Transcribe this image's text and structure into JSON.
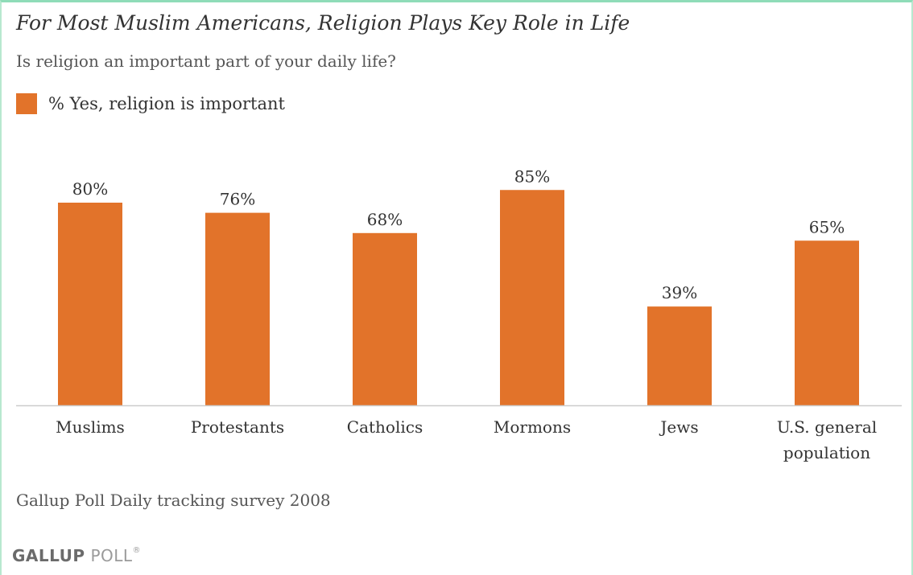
{
  "chart_data": {
    "type": "bar",
    "title": "For Most Muslim Americans, Religion Plays Key Role in Life",
    "subtitle": "Is religion an important part of your daily life?",
    "categories": [
      "Muslims",
      "Protestants",
      "Catholics",
      "Mormons",
      "Jews",
      "U.S. general population"
    ],
    "series": [
      {
        "name": "% Yes, religion is important",
        "values": [
          80,
          76,
          68,
          85,
          39,
          65
        ]
      }
    ],
    "value_labels": [
      "80%",
      "76%",
      "68%",
      "85%",
      "39%",
      "65%"
    ],
    "ylim": [
      0,
      100
    ],
    "grid": false,
    "legend_position": "top-left",
    "bar_color": "#e2732a"
  },
  "source": "Gallup Poll Daily tracking survey 2008",
  "logo": {
    "main": "GALLUP",
    "secondary": "POLL",
    "mark": "®"
  }
}
